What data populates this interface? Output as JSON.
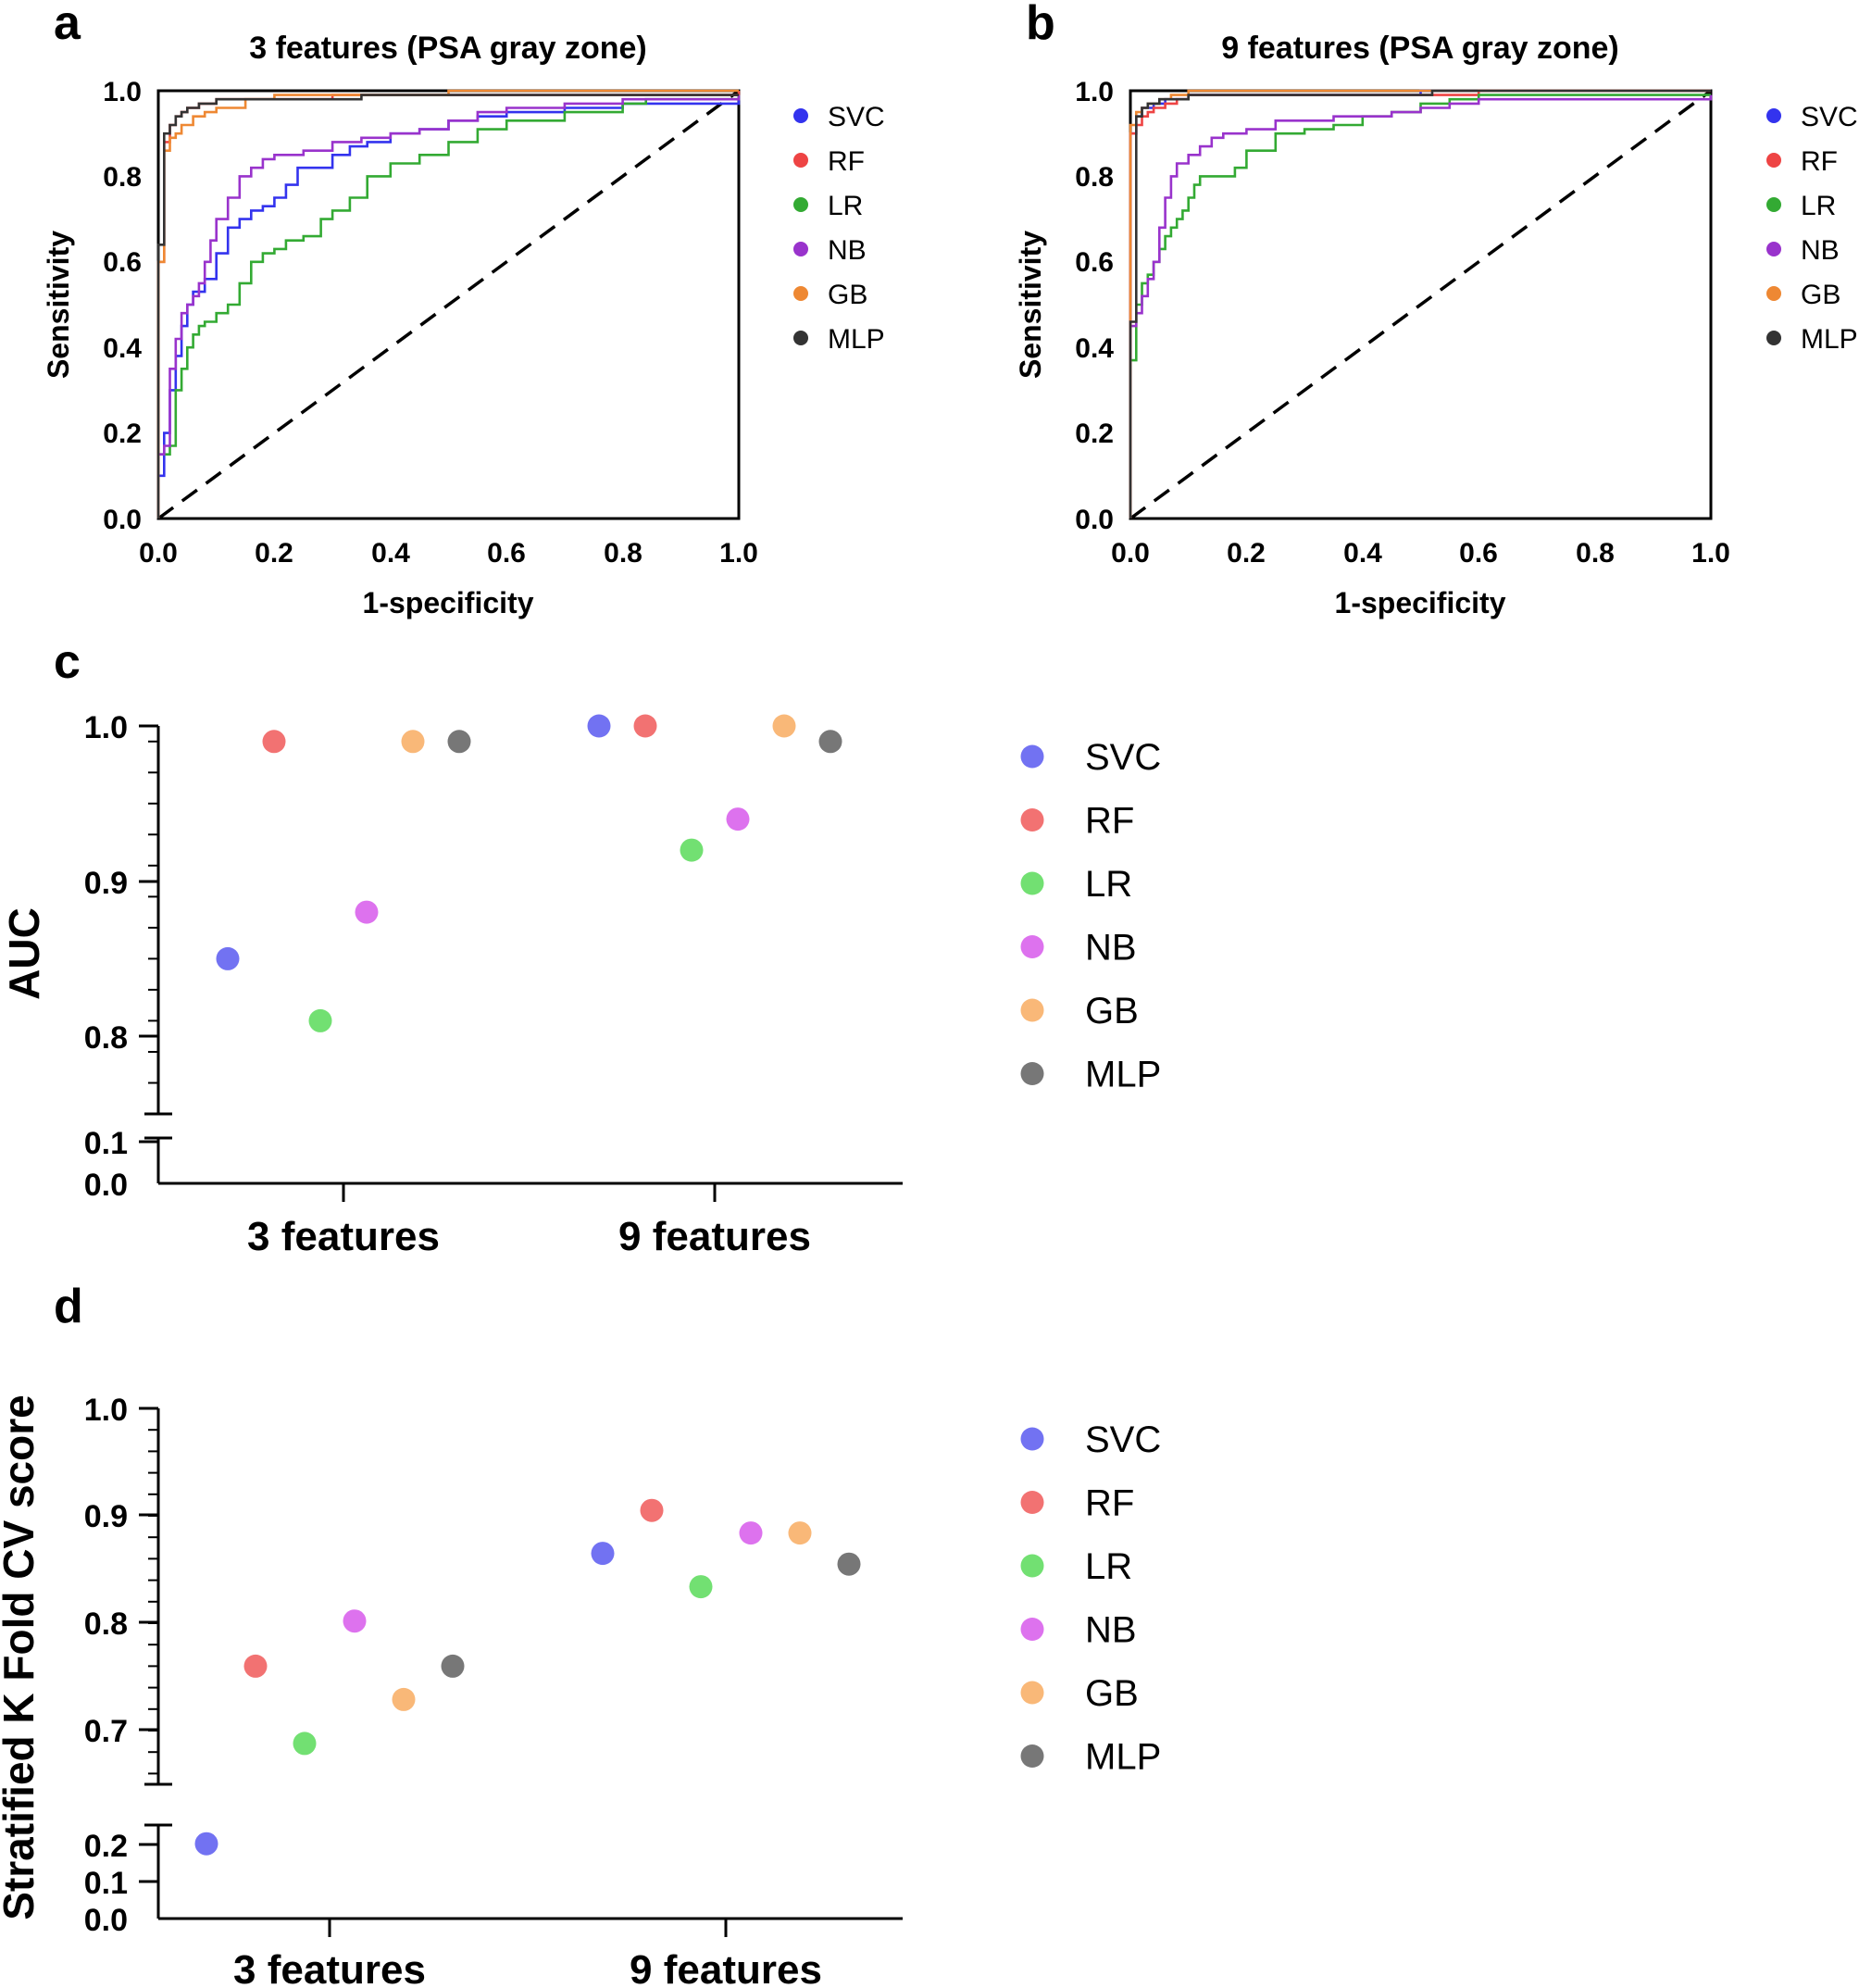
{
  "colors": {
    "SVC": "#3333ee",
    "RF": "#ee4444",
    "LR": "#33aa33",
    "NB": "#9933cc",
    "GB": "#ee8833",
    "MLP": "#333333"
  },
  "scatter_colors": {
    "SVC": "#7272f2",
    "RF": "#f27272",
    "LR": "#72e072",
    "NB": "#dd72ee",
    "GB": "#f9b878",
    "MLP": "#777777"
  },
  "chart_data": [
    {
      "panel": "a",
      "type": "line",
      "title": "3 features (PSA gray zone)",
      "xlabel": "1-specificity",
      "ylabel": "Sensitivity",
      "xlim": [
        0,
        1
      ],
      "ylim": [
        0,
        1
      ],
      "x_ticks": [
        "0.0",
        "0.2",
        "0.4",
        "0.6",
        "0.8",
        "1.0"
      ],
      "y_ticks": [
        "0.0",
        "0.2",
        "0.4",
        "0.6",
        "0.8",
        "1.0"
      ],
      "legend": [
        "SVC",
        "RF",
        "LR",
        "NB",
        "GB",
        "MLP"
      ],
      "series": [
        {
          "name": "SVC",
          "x": [
            0,
            0,
            0.01,
            0.01,
            0.02,
            0.03,
            0.04,
            0.05,
            0.06,
            0.08,
            0.1,
            0.12,
            0.14,
            0.16,
            0.18,
            0.2,
            0.22,
            0.24,
            0.27,
            0.3,
            0.33,
            0.36,
            0.4,
            0.45,
            0.5,
            0.55,
            0.6,
            0.7,
            0.8,
            1.0
          ],
          "y": [
            0,
            0.1,
            0.15,
            0.2,
            0.3,
            0.38,
            0.45,
            0.5,
            0.53,
            0.56,
            0.62,
            0.68,
            0.7,
            0.72,
            0.73,
            0.75,
            0.78,
            0.82,
            0.82,
            0.85,
            0.87,
            0.88,
            0.9,
            0.91,
            0.93,
            0.94,
            0.95,
            0.96,
            0.97,
            0.99
          ]
        },
        {
          "name": "RF",
          "x": [
            0,
            0,
            0.01,
            0.01,
            0.02,
            0.03,
            0.04,
            0.05,
            0.07,
            0.1,
            0.15,
            0.2,
            0.3,
            0.4,
            0.6,
            1.0
          ],
          "y": [
            0,
            0.6,
            0.62,
            0.88,
            0.92,
            0.94,
            0.95,
            0.96,
            0.97,
            0.98,
            0.98,
            0.98,
            0.99,
            0.99,
            0.99,
            1.0
          ]
        },
        {
          "name": "LR",
          "x": [
            0,
            0,
            0.02,
            0.03,
            0.04,
            0.05,
            0.06,
            0.07,
            0.08,
            0.1,
            0.12,
            0.14,
            0.16,
            0.18,
            0.2,
            0.22,
            0.25,
            0.28,
            0.3,
            0.33,
            0.36,
            0.4,
            0.45,
            0.5,
            0.55,
            0.6,
            0.7,
            0.8,
            0.84,
            1.0
          ],
          "y": [
            0,
            0.15,
            0.17,
            0.3,
            0.35,
            0.4,
            0.43,
            0.45,
            0.46,
            0.48,
            0.5,
            0.55,
            0.6,
            0.62,
            0.63,
            0.65,
            0.66,
            0.7,
            0.72,
            0.75,
            0.8,
            0.83,
            0.85,
            0.88,
            0.91,
            0.93,
            0.95,
            0.97,
            0.98,
            0.99
          ]
        },
        {
          "name": "NB",
          "x": [
            0,
            0,
            0.01,
            0.02,
            0.03,
            0.04,
            0.05,
            0.06,
            0.07,
            0.08,
            0.09,
            0.1,
            0.11,
            0.12,
            0.14,
            0.16,
            0.18,
            0.2,
            0.25,
            0.3,
            0.35,
            0.4,
            0.45,
            0.5,
            0.55,
            0.6,
            0.7,
            0.8,
            1.0
          ],
          "y": [
            0,
            0.15,
            0.17,
            0.35,
            0.42,
            0.48,
            0.5,
            0.52,
            0.55,
            0.6,
            0.65,
            0.7,
            0.7,
            0.75,
            0.8,
            0.82,
            0.84,
            0.85,
            0.86,
            0.88,
            0.89,
            0.9,
            0.91,
            0.93,
            0.95,
            0.96,
            0.97,
            0.98,
            0.99
          ]
        },
        {
          "name": "GB",
          "x": [
            0,
            0,
            0.01,
            0.02,
            0.03,
            0.04,
            0.06,
            0.08,
            0.1,
            0.12,
            0.15,
            0.2,
            0.25,
            0.3,
            0.4,
            0.5,
            0.6,
            0.8,
            1.0
          ],
          "y": [
            0,
            0.6,
            0.86,
            0.89,
            0.9,
            0.92,
            0.94,
            0.95,
            0.96,
            0.96,
            0.98,
            0.99,
            0.99,
            0.99,
            0.99,
            1.0,
            1.0,
            1.0,
            1.0
          ]
        },
        {
          "name": "MLP",
          "x": [
            0,
            0,
            0.01,
            0.01,
            0.02,
            0.03,
            0.04,
            0.05,
            0.07,
            0.1,
            0.15,
            0.2,
            0.25,
            0.3,
            0.35,
            0.5,
            0.7,
            1.0
          ],
          "y": [
            0,
            0.64,
            0.66,
            0.9,
            0.92,
            0.94,
            0.95,
            0.96,
            0.97,
            0.98,
            0.98,
            0.98,
            0.98,
            0.98,
            0.99,
            0.99,
            0.99,
            0.99
          ]
        }
      ]
    },
    {
      "panel": "b",
      "type": "line",
      "title": "9 features (PSA gray zone)",
      "xlabel": "1-specificity",
      "ylabel": "Sensitivity",
      "xlim": [
        0,
        1
      ],
      "ylim": [
        0,
        1
      ],
      "x_ticks": [
        "0.0",
        "0.2",
        "0.4",
        "0.6",
        "0.8",
        "1.0"
      ],
      "y_ticks": [
        "0.0",
        "0.2",
        "0.4",
        "0.6",
        "0.8",
        "1.0"
      ],
      "legend": [
        "SVC",
        "RF",
        "LR",
        "NB",
        "GB",
        "MLP"
      ],
      "series": [
        {
          "name": "SVC",
          "x": [
            0,
            0,
            0.01,
            0.02,
            0.04,
            0.06,
            0.1,
            0.2,
            0.5,
            1.0
          ],
          "y": [
            0,
            0.9,
            0.94,
            0.96,
            0.97,
            0.98,
            0.99,
            0.99,
            1.0,
            1.0
          ]
        },
        {
          "name": "RF",
          "x": [
            0,
            0,
            0.01,
            0.02,
            0.03,
            0.04,
            0.06,
            0.08,
            0.1,
            0.2,
            0.4,
            0.6,
            1.0
          ],
          "y": [
            0,
            0.9,
            0.92,
            0.94,
            0.95,
            0.96,
            0.97,
            0.98,
            0.99,
            0.99,
            0.99,
            1.0,
            1.0
          ]
        },
        {
          "name": "LR",
          "x": [
            0,
            0,
            0.01,
            0.02,
            0.03,
            0.04,
            0.05,
            0.06,
            0.07,
            0.08,
            0.09,
            0.1,
            0.11,
            0.12,
            0.14,
            0.16,
            0.18,
            0.2,
            0.25,
            0.3,
            0.35,
            0.4,
            0.45,
            0.5,
            0.55,
            0.6,
            0.62,
            1.0
          ],
          "y": [
            0,
            0.37,
            0.5,
            0.55,
            0.57,
            0.6,
            0.63,
            0.66,
            0.68,
            0.7,
            0.72,
            0.75,
            0.78,
            0.8,
            0.8,
            0.8,
            0.82,
            0.86,
            0.9,
            0.91,
            0.92,
            0.94,
            0.95,
            0.97,
            0.98,
            0.99,
            0.99,
            0.99
          ]
        },
        {
          "name": "NB",
          "x": [
            0,
            0,
            0.01,
            0.02,
            0.03,
            0.04,
            0.05,
            0.06,
            0.07,
            0.08,
            0.1,
            0.12,
            0.14,
            0.16,
            0.18,
            0.2,
            0.25,
            0.3,
            0.35,
            0.4,
            0.45,
            0.5,
            0.55,
            0.6,
            1.0
          ],
          "y": [
            0,
            0.45,
            0.48,
            0.52,
            0.56,
            0.6,
            0.68,
            0.75,
            0.8,
            0.83,
            0.85,
            0.87,
            0.89,
            0.9,
            0.9,
            0.91,
            0.93,
            0.93,
            0.94,
            0.94,
            0.95,
            0.96,
            0.97,
            0.98,
            0.99
          ]
        },
        {
          "name": "GB",
          "x": [
            0,
            0,
            0.01,
            0.02,
            0.03,
            0.05,
            0.07,
            0.1,
            0.2,
            0.4,
            0.6,
            1.0
          ],
          "y": [
            0,
            0.92,
            0.95,
            0.96,
            0.97,
            0.98,
            0.99,
            1.0,
            1.0,
            1.0,
            1.0,
            1.0
          ]
        },
        {
          "name": "MLP",
          "x": [
            0,
            0,
            0.01,
            0.01,
            0.02,
            0.03,
            0.05,
            0.08,
            0.1,
            0.2,
            0.5,
            0.52,
            1.0
          ],
          "y": [
            0,
            0.46,
            0.48,
            0.94,
            0.96,
            0.97,
            0.98,
            0.98,
            0.99,
            0.99,
            0.99,
            1.0,
            1.0
          ]
        }
      ]
    },
    {
      "panel": "c",
      "type": "scatter",
      "ylabel": "AUC",
      "categories": [
        "3 features",
        "9 features"
      ],
      "upper_ticks": [
        "0.8",
        "0.9",
        "1.0"
      ],
      "lower_ticks": [
        "0.0",
        "0.1"
      ],
      "y_upper_range": [
        0.75,
        1.0
      ],
      "y_lower_range": [
        0.0,
        0.1
      ],
      "legend": [
        "SVC",
        "RF",
        "LR",
        "NB",
        "GB",
        "MLP"
      ],
      "series": [
        {
          "name": "SVC",
          "values": [
            0.85,
            1.0
          ]
        },
        {
          "name": "RF",
          "values": [
            0.99,
            1.0
          ]
        },
        {
          "name": "LR",
          "values": [
            0.81,
            0.92
          ]
        },
        {
          "name": "NB",
          "values": [
            0.88,
            0.94
          ]
        },
        {
          "name": "GB",
          "values": [
            0.99,
            1.0
          ]
        },
        {
          "name": "MLP",
          "values": [
            0.99,
            0.99
          ]
        }
      ]
    },
    {
      "panel": "d",
      "type": "scatter",
      "ylabel": "Stratified K Fold CV score",
      "categories": [
        "3 features",
        "9 features"
      ],
      "upper_ticks": [
        "0.7",
        "0.8",
        "0.9",
        "1.0"
      ],
      "lower_ticks": [
        "0.0",
        "0.1",
        "0.2"
      ],
      "y_upper_range": [
        0.65,
        1.0
      ],
      "y_lower_range": [
        0.0,
        0.25
      ],
      "legend": [
        "SVC",
        "RF",
        "LR",
        "NB",
        "GB",
        "MLP"
      ],
      "series": [
        {
          "name": "SVC",
          "values": [
            0.2,
            0.865
          ]
        },
        {
          "name": "RF",
          "values": [
            0.76,
            0.905
          ]
        },
        {
          "name": "LR",
          "values": [
            0.688,
            0.834
          ]
        },
        {
          "name": "NB",
          "values": [
            0.802,
            0.884
          ]
        },
        {
          "name": "GB",
          "values": [
            0.729,
            0.884
          ]
        },
        {
          "name": "MLP",
          "values": [
            0.76,
            0.855
          ]
        }
      ]
    }
  ]
}
